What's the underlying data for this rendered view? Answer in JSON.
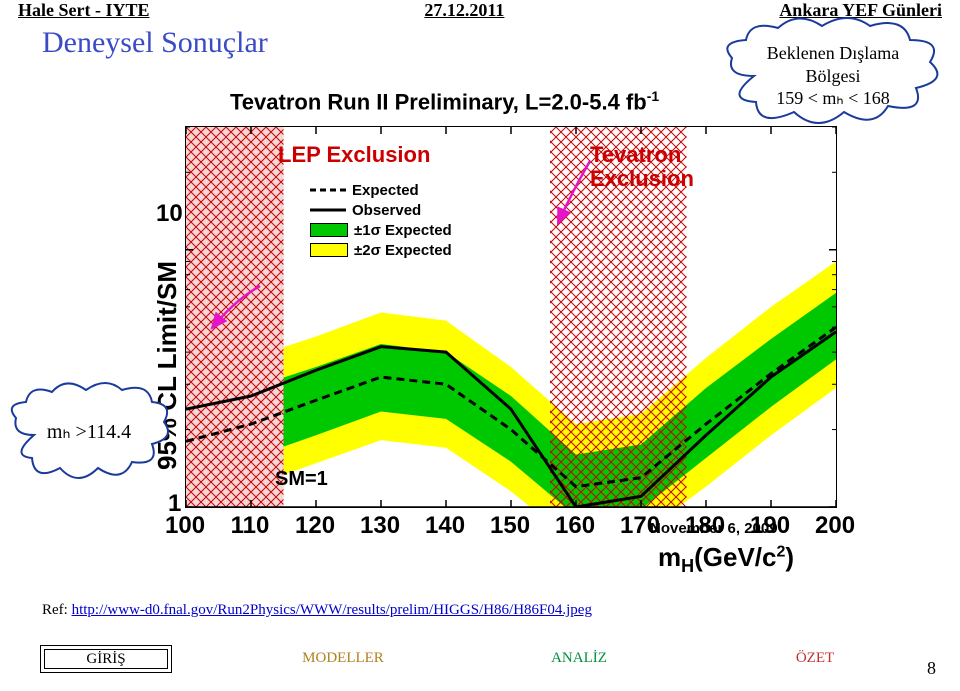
{
  "header": {
    "left": "Hale Sert - IYTE",
    "center": "27.12.2011",
    "right": "Ankara YEF Günleri"
  },
  "title": "Deneysel Sonuçlar",
  "chart": {
    "title_text": "Tevatron Run II Preliminary, L=2.0-5.4 fb",
    "y_axis_label": "95% CL Limit/SM",
    "x_axis_label": "mₕ(GeV/c²)",
    "sm_label": "SM=1",
    "date_label": "November 6, 2009",
    "lep_label": "LEP Exclusion",
    "tev_label1": "Tevatron",
    "tev_label2": "Exclusion",
    "legend": {
      "expected": "Expected",
      "observed": "Observed",
      "band1": "±1σ Expected",
      "band2": "±2σ Expected"
    },
    "type": "line-with-bands",
    "xlim": [
      100,
      200
    ],
    "ylim": [
      1,
      30
    ],
    "yscale": "log",
    "x_ticks": [
      100,
      110,
      120,
      130,
      140,
      150,
      160,
      170,
      180,
      190,
      200
    ],
    "y_ticks": [
      1,
      10
    ],
    "colors": {
      "band2": "#ffff00",
      "band1": "#00c800",
      "observed": "#000000",
      "expected": "#000000",
      "hatch": "#cc0000",
      "title": "#3a4bc8",
      "cloud_stroke": "#1a3b9c",
      "arrow": "#e614c8"
    },
    "shapes": {
      "observed_width": 3,
      "expected_dash": "8,5",
      "hatch_regions_x": [
        [
          100,
          115
        ],
        [
          156,
          177
        ]
      ],
      "lep_fill_xmax": 115
    },
    "series": {
      "x": [
        100,
        110,
        120,
        130,
        140,
        150,
        160,
        170,
        180,
        190,
        200
      ],
      "observed": [
        2.4,
        2.7,
        3.4,
        4.2,
        4.0,
        2.4,
        1.0,
        1.1,
        1.9,
        3.2,
        4.8
      ],
      "expected": [
        1.8,
        2.1,
        2.6,
        3.2,
        3.0,
        2.0,
        1.2,
        1.3,
        2.1,
        3.3,
        5.0
      ],
      "plus1": [
        2.4,
        2.9,
        3.5,
        4.3,
        4.0,
        2.7,
        1.6,
        1.75,
        2.9,
        4.5,
        6.8
      ],
      "minus1": [
        1.35,
        1.55,
        1.9,
        2.35,
        2.2,
        1.5,
        0.92,
        0.98,
        1.55,
        2.45,
        3.75
      ],
      "plus2": [
        3.2,
        3.8,
        4.6,
        5.7,
        5.3,
        3.5,
        2.1,
        2.3,
        3.8,
        6.0,
        9.0
      ],
      "minus2": [
        1.05,
        1.2,
        1.48,
        1.82,
        1.7,
        1.15,
        0.72,
        0.78,
        1.2,
        1.9,
        2.9
      ]
    }
  },
  "clouds": {
    "left": "mₕ >114.4",
    "right_top": "Beklenen Dışlama",
    "right_mid": "Bölgesi",
    "right_bot": "159 < mₕ < 168"
  },
  "ref": {
    "prefix": "Ref: ",
    "url": "http://www-d0.fnal.gov/Run2Physics/WWW/results/prelim/HIGGS/H86/H86F04.jpeg"
  },
  "nav": {
    "items": [
      "GİRİŞ",
      "MODELLER",
      "ANALİZ",
      "ÖZET"
    ],
    "colors": [
      "#000000",
      "#b08020",
      "#009040",
      "#c03030"
    ]
  },
  "page_number": "8"
}
